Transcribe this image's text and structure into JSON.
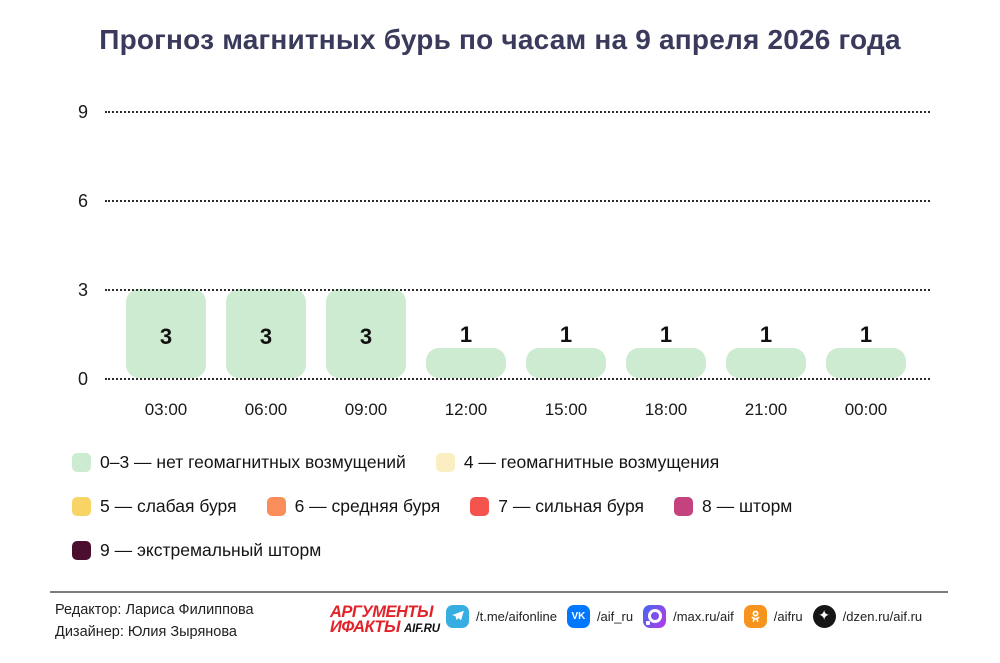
{
  "title": "Прогноз магнитных бурь по часам на 9 апреля 2026 года",
  "chart_data": {
    "type": "bar",
    "x": [
      "03:00",
      "06:00",
      "09:00",
      "12:00",
      "15:00",
      "18:00",
      "21:00",
      "00:00"
    ],
    "values": [
      3,
      3,
      3,
      1,
      1,
      1,
      1,
      1
    ],
    "title": "Прогноз магнитных бурь по часам на 9 апреля 2026 года",
    "xlabel": "",
    "ylabel": "",
    "ylim": [
      0,
      9
    ],
    "yticks": [
      9,
      6,
      3,
      0
    ],
    "bar_color": "#cdebd0",
    "grid": "horizontal-dotted",
    "legend_position": "below"
  },
  "legend": {
    "rows": [
      [
        {
          "color": "#cdebd0",
          "label": "0–3 — нет геомагнитных возмущений"
        },
        {
          "color": "#fbeec3",
          "label": "4 — геомагнитные возмущения"
        }
      ],
      [
        {
          "color": "#f8d365",
          "label": "5 — слабая буря"
        },
        {
          "color": "#fa8e5a",
          "label": "6 — средняя буря"
        },
        {
          "color": "#f5544c",
          "label": "7 — сильная буря"
        },
        {
          "color": "#c4437e",
          "label": "8 — шторм"
        }
      ],
      [
        {
          "color": "#4b0e2f",
          "label": "9 — экстремальный шторм"
        }
      ]
    ]
  },
  "footer": {
    "editor": "Редактор: Лариса Филиппова",
    "designer": "Дизайнер: Юлия Зырянова",
    "logo": {
      "line1": "АРГУМЕНТЫ",
      "line2": "ИФАКТЫ",
      "suffix": "AIF.RU"
    },
    "socials": [
      {
        "icon": "telegram",
        "label": "/t.me/aifonline",
        "color": "#37aee2"
      },
      {
        "icon": "vk",
        "label": "/aif_ru",
        "color": "#0077ff"
      },
      {
        "icon": "max",
        "label": "/max.ru/aif",
        "color": "#8a4fe8"
      },
      {
        "icon": "ok",
        "label": "/aifru",
        "color": "#f7941e"
      },
      {
        "icon": "dzen",
        "label": "/dzen.ru/aif.ru",
        "color": "#161616"
      }
    ]
  }
}
